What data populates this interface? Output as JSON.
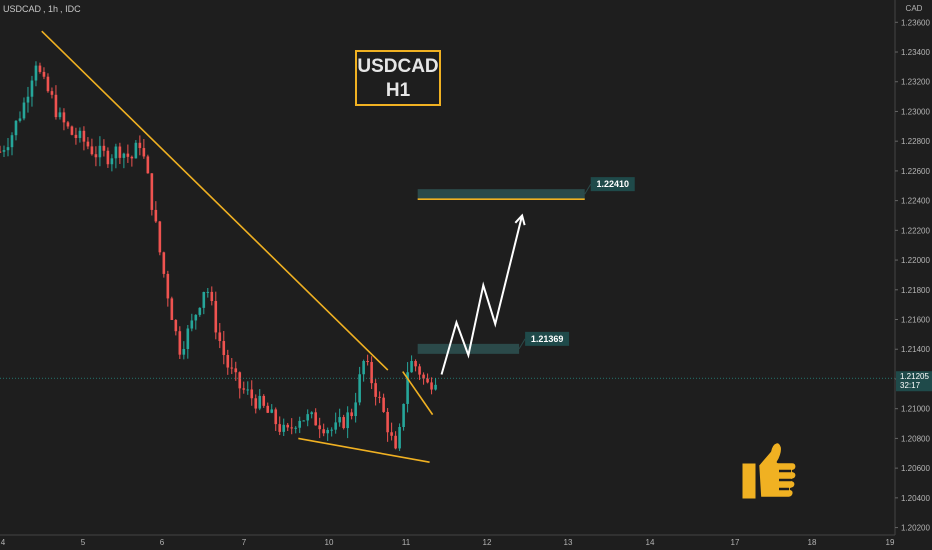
{
  "header": {
    "symbol": "USDCAD",
    "interval": "1h",
    "source": "IDC"
  },
  "currency": "CAD",
  "badge": {
    "line1": "USDCAD",
    "line2": "H1"
  },
  "thumb_icon": "thumbs-up-icon",
  "colors": {
    "up": "#26a69a",
    "down": "#ef5350",
    "trend": "#f0b122",
    "bg": "#1e1e1e",
    "zone": "#2b4a4a",
    "price_tag": "#1f4a4a"
  },
  "chart_data": {
    "type": "candlestick",
    "title": "USDCAD, 1h, IDC",
    "ylabel": "CAD",
    "ylim": [
      1.2015,
      1.2375
    ],
    "yticks": [
      1.202,
      1.204,
      1.206,
      1.208,
      1.21,
      1.212,
      1.214,
      1.216,
      1.218,
      1.22,
      1.222,
      1.224,
      1.226,
      1.228,
      1.23,
      1.232,
      1.234,
      1.236,
      1.238
    ],
    "ytick_labels": [
      "1.20200",
      "1.20400",
      "1.20600",
      "1.20800",
      "1.21000",
      "1.21200",
      "1.21400",
      "1.21600",
      "1.21800",
      "1.22000",
      "1.22200",
      "1.22400",
      "1.22600",
      "1.22800",
      "1.23000",
      "1.23200",
      "1.23400",
      "1.23600",
      "1.23800"
    ],
    "xlim": [
      4,
      19
    ],
    "xticks": [
      4,
      5,
      6,
      7,
      10,
      11,
      12,
      13,
      14,
      17,
      18,
      19
    ],
    "xtick_labels": [
      "4",
      "5",
      "6",
      "7",
      "10",
      "11",
      "12",
      "13",
      "14",
      "17",
      "18",
      "19"
    ],
    "price_path": [
      [
        4.0,
        1.2273
      ],
      [
        4.2,
        1.2285
      ],
      [
        4.4,
        1.2305
      ],
      [
        4.6,
        1.2335
      ],
      [
        4.7,
        1.232
      ],
      [
        4.85,
        1.231
      ],
      [
        5.0,
        1.2295
      ],
      [
        5.2,
        1.2285
      ],
      [
        5.4,
        1.228
      ],
      [
        5.6,
        1.2272
      ],
      [
        5.8,
        1.227
      ],
      [
        6.0,
        1.2275
      ],
      [
        6.2,
        1.2268
      ],
      [
        6.35,
        1.228
      ],
      [
        6.5,
        1.225
      ],
      [
        6.7,
        1.22
      ],
      [
        6.9,
        1.216
      ],
      [
        7.0,
        1.214
      ],
      [
        7.2,
        1.2155
      ],
      [
        7.45,
        1.2185
      ],
      [
        7.65,
        1.215
      ],
      [
        7.8,
        1.213
      ],
      [
        8.0,
        1.2115
      ],
      [
        8.3,
        1.2105
      ],
      [
        8.6,
        1.2092
      ],
      [
        8.8,
        1.2082
      ],
      [
        9.0,
        1.2095
      ],
      [
        9.3,
        1.2092
      ],
      [
        9.6,
        1.2085
      ],
      [
        9.9,
        1.2098
      ],
      [
        10.1,
        1.2132
      ],
      [
        10.3,
        1.2112
      ],
      [
        10.5,
        1.2088
      ],
      [
        10.65,
        1.2066
      ],
      [
        10.75,
        1.2102
      ],
      [
        10.85,
        1.2132
      ],
      [
        11.0,
        1.2128
      ],
      [
        11.15,
        1.2115
      ],
      [
        11.3,
        1.2122
      ]
    ],
    "trendlines": [
      {
        "from": [
          4.7,
          1.2354
        ],
        "to": [
          10.5,
          1.2126
        ]
      },
      {
        "from": [
          9.0,
          1.208
        ],
        "to": [
          11.2,
          1.2064
        ]
      },
      {
        "from": [
          10.75,
          1.2125
        ],
        "to": [
          11.25,
          1.2096
        ]
      }
    ],
    "projection": [
      [
        11.4,
        1.2123
      ],
      [
        11.65,
        1.2158
      ],
      [
        11.85,
        1.2136
      ],
      [
        12.1,
        1.2183
      ],
      [
        12.3,
        1.2157
      ],
      [
        12.75,
        1.223
      ]
    ],
    "levels": [
      {
        "label": "1.21369",
        "value": 1.21369,
        "x_from": 11.0,
        "x_to": 12.7
      },
      {
        "label": "1.22410",
        "value": 1.2241,
        "x_from": 11.0,
        "x_to": 13.8
      }
    ],
    "current_price": {
      "label": "1.21205",
      "value": 1.21205,
      "countdown": "32:17"
    }
  }
}
